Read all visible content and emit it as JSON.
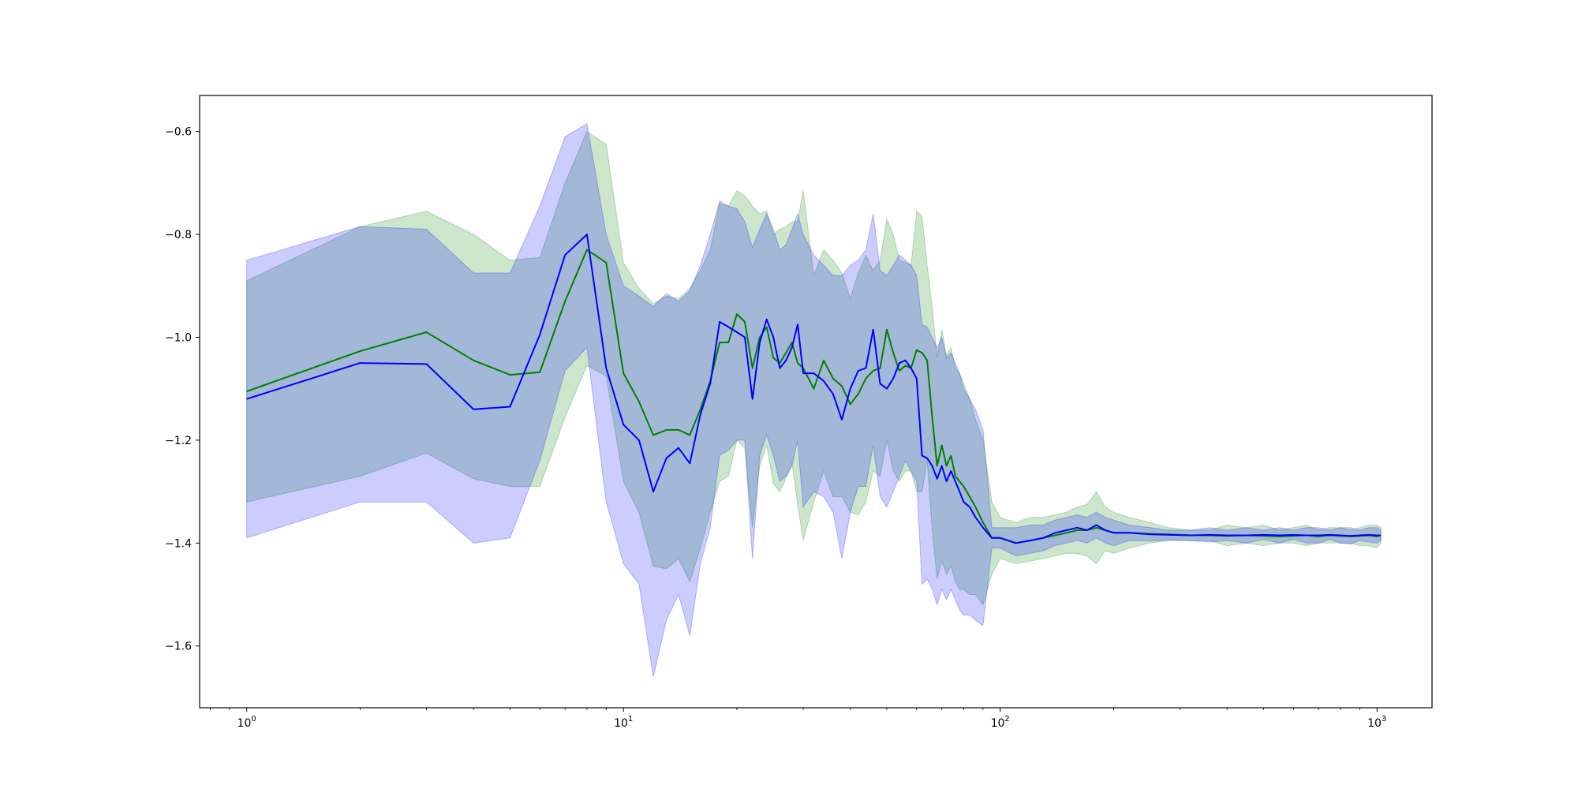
{
  "chart_data": {
    "type": "line",
    "title": "",
    "xlabel": "",
    "ylabel": "",
    "xscale": "log",
    "xlim": [
      0.75,
      1400
    ],
    "ylim": [
      -1.72,
      -0.53
    ],
    "grid": false,
    "legend": "none",
    "x_ticks": [
      {
        "value": 1,
        "base": "10",
        "exp": "0"
      },
      {
        "value": 10,
        "base": "10",
        "exp": "1"
      },
      {
        "value": 100,
        "base": "10",
        "exp": "2"
      },
      {
        "value": 1000,
        "base": "10",
        "exp": "3"
      }
    ],
    "y_ticks": [
      {
        "value": -0.6,
        "label": "−0.6"
      },
      {
        "value": -0.8,
        "label": "−0.8"
      },
      {
        "value": -1.0,
        "label": "−1.0"
      },
      {
        "value": -1.2,
        "label": "−1.2"
      },
      {
        "value": -1.4,
        "label": "−1.4"
      },
      {
        "value": -1.6,
        "label": "−1.6"
      }
    ],
    "series": [
      {
        "color": "#008000",
        "band_color": "#008000",
        "band_opacity": 0.2,
        "x": [
          1,
          2,
          3,
          4,
          5,
          6,
          7,
          8,
          9,
          10,
          11,
          12,
          13,
          14,
          15,
          16,
          17,
          18,
          19,
          20,
          21,
          22,
          23,
          24,
          25,
          26,
          27,
          28,
          29,
          30,
          32,
          34,
          36,
          38,
          40,
          42,
          44,
          46,
          48,
          50,
          52,
          54,
          56,
          58,
          60,
          62,
          64,
          66,
          68,
          70,
          72,
          74,
          76,
          78,
          80,
          83,
          86,
          90,
          95,
          100,
          110,
          120,
          130,
          140,
          150,
          160,
          170,
          180,
          190,
          200,
          220,
          250,
          280,
          320,
          360,
          400,
          450,
          500,
          550,
          600,
          650,
          700,
          750,
          800,
          850,
          900,
          950,
          1000,
          1024
        ],
        "y": [
          -1.105,
          -1.027,
          -0.99,
          -1.045,
          -1.073,
          -1.068,
          -0.93,
          -0.83,
          -0.855,
          -1.07,
          -1.125,
          -1.19,
          -1.18,
          -1.18,
          -1.19,
          -1.14,
          -1.085,
          -1.01,
          -1.01,
          -0.955,
          -0.97,
          -1.06,
          -1.0,
          -0.98,
          -1.04,
          -1.05,
          -1.03,
          -1.01,
          -1.05,
          -1.06,
          -1.1,
          -1.045,
          -1.08,
          -1.095,
          -1.13,
          -1.11,
          -1.08,
          -1.065,
          -1.06,
          -0.985,
          -1.03,
          -1.065,
          -1.055,
          -1.06,
          -1.025,
          -1.03,
          -1.045,
          -1.155,
          -1.25,
          -1.21,
          -1.25,
          -1.23,
          -1.27,
          -1.28,
          -1.29,
          -1.31,
          -1.33,
          -1.36,
          -1.39,
          -1.39,
          -1.4,
          -1.395,
          -1.39,
          -1.385,
          -1.38,
          -1.375,
          -1.375,
          -1.37,
          -1.375,
          -1.38,
          -1.38,
          -1.382,
          -1.383,
          -1.385,
          -1.385,
          -1.386,
          -1.385,
          -1.386,
          -1.387,
          -1.386,
          -1.385,
          -1.387,
          -1.385,
          -1.386,
          -1.387,
          -1.386,
          -1.385,
          -1.387,
          -1.385
        ],
        "upper": [
          -0.89,
          -0.785,
          -0.755,
          -0.8,
          -0.85,
          -0.845,
          -0.7,
          -0.6,
          -0.625,
          -0.855,
          -0.905,
          -0.935,
          -0.92,
          -0.925,
          -0.905,
          -0.87,
          -0.83,
          -0.74,
          -0.745,
          -0.715,
          -0.725,
          -0.745,
          -0.76,
          -0.755,
          -0.8,
          -0.79,
          -0.785,
          -0.775,
          -0.775,
          -0.715,
          -0.88,
          -0.83,
          -0.85,
          -0.875,
          -0.925,
          -0.875,
          -0.84,
          -0.87,
          -0.85,
          -0.77,
          -0.8,
          -0.85,
          -0.855,
          -0.86,
          -0.755,
          -0.765,
          -0.86,
          -0.94,
          -1.04,
          -0.985,
          -1.035,
          -1.02,
          -1.06,
          -1.07,
          -1.09,
          -1.12,
          -1.16,
          -1.2,
          -1.32,
          -1.35,
          -1.36,
          -1.35,
          -1.35,
          -1.345,
          -1.34,
          -1.33,
          -1.325,
          -1.3,
          -1.33,
          -1.34,
          -1.35,
          -1.36,
          -1.37,
          -1.375,
          -1.375,
          -1.365,
          -1.37,
          -1.365,
          -1.375,
          -1.37,
          -1.365,
          -1.375,
          -1.37,
          -1.37,
          -1.375,
          -1.37,
          -1.365,
          -1.365,
          -1.37
        ],
        "lower": [
          -1.32,
          -1.27,
          -1.225,
          -1.275,
          -1.29,
          -1.29,
          -1.155,
          -1.055,
          -1.075,
          -1.28,
          -1.34,
          -1.445,
          -1.45,
          -1.43,
          -1.475,
          -1.41,
          -1.34,
          -1.28,
          -1.27,
          -1.2,
          -1.215,
          -1.37,
          -1.25,
          -1.21,
          -1.285,
          -1.3,
          -1.275,
          -1.245,
          -1.325,
          -1.395,
          -1.32,
          -1.26,
          -1.31,
          -1.31,
          -1.34,
          -1.345,
          -1.32,
          -1.26,
          -1.27,
          -1.2,
          -1.26,
          -1.28,
          -1.26,
          -1.26,
          -1.3,
          -1.3,
          -1.24,
          -1.375,
          -1.47,
          -1.435,
          -1.46,
          -1.445,
          -1.475,
          -1.49,
          -1.49,
          -1.5,
          -1.5,
          -1.52,
          -1.46,
          -1.43,
          -1.44,
          -1.435,
          -1.43,
          -1.425,
          -1.42,
          -1.42,
          -1.425,
          -1.44,
          -1.415,
          -1.42,
          -1.41,
          -1.4,
          -1.395,
          -1.395,
          -1.395,
          -1.405,
          -1.4,
          -1.405,
          -1.4,
          -1.4,
          -1.405,
          -1.4,
          -1.4,
          -1.4,
          -1.4,
          -1.405,
          -1.405,
          -1.41,
          -1.4
        ]
      },
      {
        "color": "#0000ff",
        "band_color": "#0000ff",
        "band_opacity": 0.2,
        "x": [
          1,
          2,
          3,
          4,
          5,
          6,
          7,
          8,
          9,
          10,
          11,
          12,
          13,
          14,
          15,
          16,
          17,
          18,
          19,
          20,
          21,
          22,
          23,
          24,
          25,
          26,
          27,
          28,
          29,
          30,
          32,
          34,
          36,
          38,
          40,
          42,
          44,
          46,
          48,
          50,
          52,
          54,
          56,
          58,
          60,
          62,
          64,
          66,
          68,
          70,
          72,
          74,
          76,
          78,
          80,
          83,
          86,
          90,
          95,
          100,
          110,
          120,
          130,
          140,
          150,
          160,
          170,
          180,
          190,
          200,
          220,
          250,
          280,
          320,
          360,
          400,
          450,
          500,
          550,
          600,
          650,
          700,
          750,
          800,
          850,
          900,
          950,
          1000,
          1024
        ],
        "y": [
          -1.12,
          -1.05,
          -1.052,
          -1.14,
          -1.135,
          -0.995,
          -0.84,
          -0.8,
          -1.06,
          -1.17,
          -1.2,
          -1.3,
          -1.235,
          -1.215,
          -1.245,
          -1.15,
          -1.09,
          -0.97,
          -0.98,
          -0.99,
          -1.0,
          -1.12,
          -1.01,
          -0.965,
          -1.0,
          -1.06,
          -1.045,
          -1.02,
          -0.975,
          -1.07,
          -1.07,
          -1.085,
          -1.11,
          -1.16,
          -1.1,
          -1.065,
          -1.06,
          -0.985,
          -1.09,
          -1.1,
          -1.08,
          -1.05,
          -1.045,
          -1.06,
          -1.08,
          -1.23,
          -1.235,
          -1.25,
          -1.275,
          -1.25,
          -1.28,
          -1.26,
          -1.28,
          -1.3,
          -1.32,
          -1.33,
          -1.35,
          -1.37,
          -1.39,
          -1.39,
          -1.4,
          -1.395,
          -1.39,
          -1.38,
          -1.375,
          -1.37,
          -1.375,
          -1.365,
          -1.375,
          -1.38,
          -1.38,
          -1.383,
          -1.384,
          -1.385,
          -1.384,
          -1.385,
          -1.385,
          -1.384,
          -1.385,
          -1.384,
          -1.385,
          -1.385,
          -1.384,
          -1.385,
          -1.386,
          -1.385,
          -1.384,
          -1.385,
          -1.385
        ],
        "upper": [
          -0.85,
          -0.785,
          -0.79,
          -0.875,
          -0.875,
          -0.745,
          -0.61,
          -0.585,
          -0.8,
          -0.9,
          -0.92,
          -0.94,
          -0.915,
          -0.93,
          -0.91,
          -0.86,
          -0.8,
          -0.735,
          -0.745,
          -0.75,
          -0.775,
          -0.825,
          -0.79,
          -0.76,
          -0.79,
          -0.83,
          -0.82,
          -0.79,
          -0.76,
          -0.8,
          -0.84,
          -0.86,
          -0.88,
          -0.88,
          -0.86,
          -0.85,
          -0.83,
          -0.76,
          -0.87,
          -0.88,
          -0.86,
          -0.84,
          -0.85,
          -0.86,
          -0.88,
          -0.975,
          -0.98,
          -1.0,
          -1.02,
          -1.0,
          -1.04,
          -1.03,
          -1.05,
          -1.07,
          -1.1,
          -1.12,
          -1.14,
          -1.18,
          -1.37,
          -1.37,
          -1.37,
          -1.365,
          -1.365,
          -1.355,
          -1.35,
          -1.345,
          -1.35,
          -1.34,
          -1.35,
          -1.355,
          -1.365,
          -1.37,
          -1.375,
          -1.375,
          -1.37,
          -1.375,
          -1.37,
          -1.375,
          -1.37,
          -1.375,
          -1.37,
          -1.37,
          -1.375,
          -1.37,
          -1.37,
          -1.375,
          -1.37,
          -1.37,
          -1.375
        ],
        "lower": [
          -1.39,
          -1.32,
          -1.32,
          -1.4,
          -1.39,
          -1.24,
          -1.065,
          -1.02,
          -1.32,
          -1.44,
          -1.48,
          -1.66,
          -1.55,
          -1.5,
          -1.58,
          -1.44,
          -1.37,
          -1.23,
          -1.22,
          -1.2,
          -1.2,
          -1.43,
          -1.23,
          -1.19,
          -1.23,
          -1.28,
          -1.27,
          -1.25,
          -1.2,
          -1.33,
          -1.3,
          -1.31,
          -1.34,
          -1.43,
          -1.34,
          -1.29,
          -1.29,
          -1.21,
          -1.31,
          -1.33,
          -1.3,
          -1.27,
          -1.24,
          -1.26,
          -1.28,
          -1.48,
          -1.47,
          -1.49,
          -1.52,
          -1.49,
          -1.51,
          -1.49,
          -1.51,
          -1.53,
          -1.54,
          -1.54,
          -1.55,
          -1.56,
          -1.41,
          -1.41,
          -1.425,
          -1.42,
          -1.415,
          -1.405,
          -1.4,
          -1.395,
          -1.4,
          -1.39,
          -1.4,
          -1.405,
          -1.395,
          -1.396,
          -1.394,
          -1.395,
          -1.398,
          -1.395,
          -1.4,
          -1.393,
          -1.4,
          -1.393,
          -1.4,
          -1.4,
          -1.393,
          -1.4,
          -1.402,
          -1.395,
          -1.398,
          -1.4,
          -1.395
        ]
      }
    ]
  }
}
